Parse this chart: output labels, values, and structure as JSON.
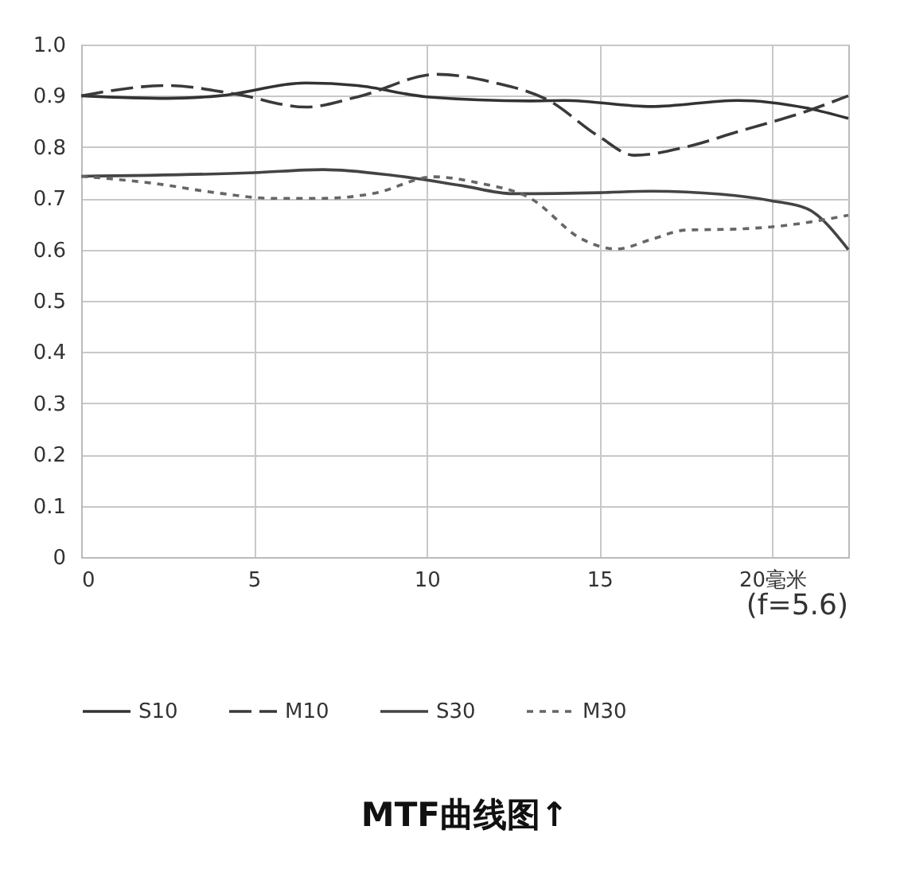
{
  "chart_data": {
    "type": "line",
    "title": "MTF曲线图↑",
    "annotations": [
      "(f=5.6)"
    ],
    "xlim": [
      0,
      22.2
    ],
    "xticks": [
      0,
      5,
      10,
      15,
      {
        "value": 20,
        "label": "20毫米"
      }
    ],
    "ylim": [
      0,
      1.0
    ],
    "yticks": [
      0,
      0.1,
      0.2,
      0.3,
      0.4,
      0.5,
      0.6,
      0.7,
      0.8,
      0.9,
      {
        "value": 1.0,
        "label": "1.0"
      }
    ],
    "grid": true,
    "legend": "bottom",
    "series": [
      {
        "name": "S10",
        "color": "#333333",
        "line_style": "solid",
        "x": [
          0,
          2.5,
          4,
          6.5,
          8,
          10,
          13,
          14,
          16.5,
          19,
          21,
          22.2
        ],
        "values": [
          0.9,
          0.895,
          0.9,
          0.925,
          0.92,
          0.898,
          0.89,
          0.891,
          0.879,
          0.891,
          0.876,
          0.856
        ]
      },
      {
        "name": "M10",
        "color": "#3a3a3a",
        "line_style": "dashed",
        "x": [
          0,
          2.5,
          4.5,
          6.5,
          8,
          10.3,
          12,
          13.5,
          15,
          16,
          17.5,
          19,
          21,
          22.2
        ],
        "values": [
          0.9,
          0.92,
          0.903,
          0.878,
          0.898,
          0.942,
          0.925,
          0.892,
          0.82,
          0.784,
          0.8,
          0.83,
          0.87,
          0.9
        ]
      },
      {
        "name": "S30",
        "color": "#444444",
        "line_style": "solid",
        "x": [
          0,
          5,
          7,
          9,
          11,
          12.5,
          15,
          16.5,
          18.5,
          20,
          21,
          22.2
        ],
        "values": [
          0.743,
          0.75,
          0.756,
          0.745,
          0.725,
          0.709,
          0.711,
          0.714,
          0.708,
          0.695,
          0.68,
          0.6
        ]
      },
      {
        "name": "M30",
        "color": "#666666",
        "line_style": "dotted",
        "x": [
          0,
          2,
          4,
          5.5,
          7,
          8.5,
          10.2,
          11.5,
          13,
          14.5,
          15.5,
          16.5,
          17.5,
          19,
          20.5,
          22.2
        ],
        "values": [
          0.743,
          0.73,
          0.71,
          0.7,
          0.7,
          0.71,
          0.742,
          0.73,
          0.7,
          0.62,
          0.601,
          0.62,
          0.638,
          0.64,
          0.648,
          0.667
        ]
      }
    ]
  }
}
